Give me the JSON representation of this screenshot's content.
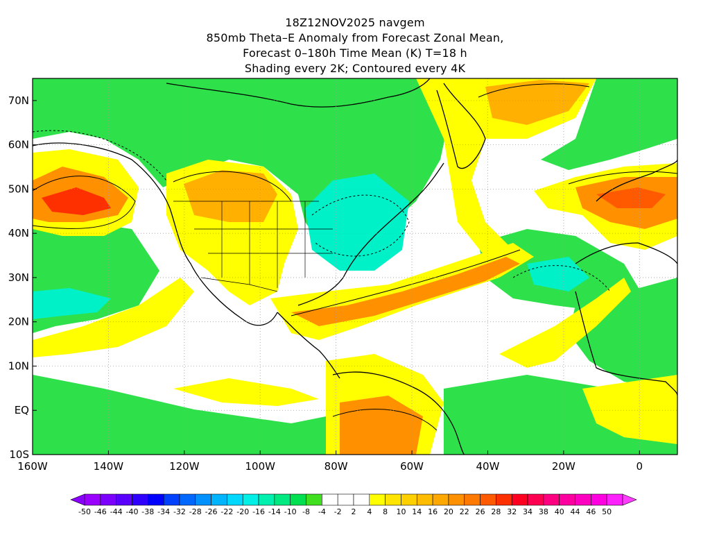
{
  "title": {
    "line1": "18Z12NOV2025 navgem",
    "line2": "850mb Theta–E Anomaly from Forecast Zonal Mean,",
    "line3": "Forecast 0–180h Time Mean (K) T=18 h",
    "line4": "Shading every 2K; Contoured every 4K"
  },
  "map": {
    "lon_range": [
      -160,
      10
    ],
    "lat_range": [
      -10,
      75
    ],
    "x_ticks": [
      "160W",
      "140W",
      "120W",
      "100W",
      "80W",
      "60W",
      "40W",
      "20W",
      "0"
    ],
    "y_ticks": [
      "10S",
      "EQ",
      "10N",
      "20N",
      "30N",
      "40N",
      "50N",
      "60N",
      "70N"
    ],
    "grid": "dotted"
  },
  "colorbar": {
    "labels": [
      "-50",
      "-46",
      "-44",
      "-40",
      "-38",
      "-34",
      "-32",
      "-28",
      "-26",
      "-22",
      "-20",
      "-16",
      "-14",
      "-10",
      "-8",
      "-4",
      "-2",
      "2",
      "4",
      "8",
      "10",
      "14",
      "16",
      "20",
      "22",
      "26",
      "28",
      "32",
      "34",
      "38",
      "40",
      "44",
      "46",
      "50"
    ],
    "colors": [
      "#9a00ff",
      "#7c00ff",
      "#5a00ff",
      "#3000ff",
      "#0000ff",
      "#0040ff",
      "#0068ff",
      "#0090ff",
      "#00b4ff",
      "#00d8ff",
      "#00f0e8",
      "#00f0b0",
      "#00e880",
      "#00e050",
      "#40e020",
      "#ffffff",
      "#ffffff",
      "#ffffff",
      "#ffff00",
      "#ffe400",
      "#ffd000",
      "#ffbc00",
      "#ffa800",
      "#ff9000",
      "#ff7800",
      "#ff5a00",
      "#ff3000",
      "#ff0020",
      "#ff0050",
      "#ff0080",
      "#ff00a0",
      "#ff00c0",
      "#ff00e0",
      "#ff20ff"
    ],
    "low_arrow_color": "#8a00ff",
    "high_arrow_color": "#ff3cff"
  }
}
